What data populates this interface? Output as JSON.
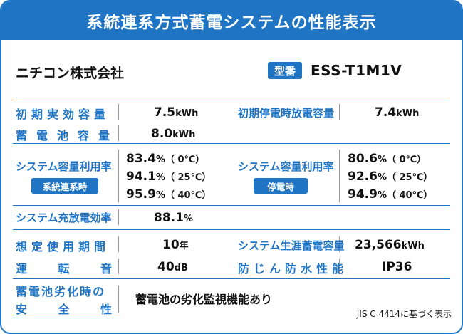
{
  "title": "系統連系方式蓄電システムの性能表示",
  "company": "ニチコン株式会社",
  "model": {
    "badge": "型番",
    "value": "ESS-T1M1V"
  },
  "rows": {
    "initial_capacity": {
      "label": "初期実効容量",
      "value": "7.5",
      "unit": "kWh"
    },
    "outage_discharge": {
      "label": "初期停電時放電容量",
      "value": "7.4",
      "unit": "kWh"
    },
    "battery_capacity": {
      "label": "蓄電池容量",
      "value": "8.0",
      "unit": "kWh"
    },
    "utilization_grid": {
      "label": "システム容量利用率",
      "badge": "系統連系時",
      "lines": [
        {
          "value": "83.4",
          "unit": "%",
          "temp": "（ 0℃）"
        },
        {
          "value": "94.1",
          "unit": "%",
          "temp": "（ 25℃）"
        },
        {
          "value": "95.9",
          "unit": "%",
          "temp": "（ 40℃）"
        }
      ]
    },
    "utilization_outage": {
      "label": "システム容量利用率",
      "badge": "停電時",
      "lines": [
        {
          "value": "80.6",
          "unit": "%",
          "temp": "（ 0℃）"
        },
        {
          "value": "92.6",
          "unit": "%",
          "temp": "（ 25℃）"
        },
        {
          "value": "94.9",
          "unit": "%",
          "temp": "（ 40℃）"
        }
      ]
    },
    "charge_efficiency": {
      "label": "システム充放電効率",
      "value": "88.1",
      "unit": "%"
    },
    "expected_period": {
      "label": "想定使用期間",
      "value": "10",
      "unit": "年"
    },
    "lifetime_storage": {
      "label": "システム生涯蓄電容量",
      "value": "23,566",
      "unit": "kWh"
    },
    "operating_noise": {
      "label_chars": [
        "運",
        "転",
        "音"
      ],
      "value": "40",
      "unit": "dB"
    },
    "water_resistance": {
      "label": "防じん防水性能",
      "value": "IP36"
    },
    "degradation_safety": {
      "label_line1": "蓄電池劣化時の",
      "label_line2_chars": [
        "安",
        "全",
        "性"
      ],
      "value": "蓄電池の劣化監視機能あり"
    }
  },
  "footnote": "JIS C 4414に基づく表示",
  "colors": {
    "accent": "#1f74c4",
    "text": "#111111",
    "background": "#ffffff"
  }
}
